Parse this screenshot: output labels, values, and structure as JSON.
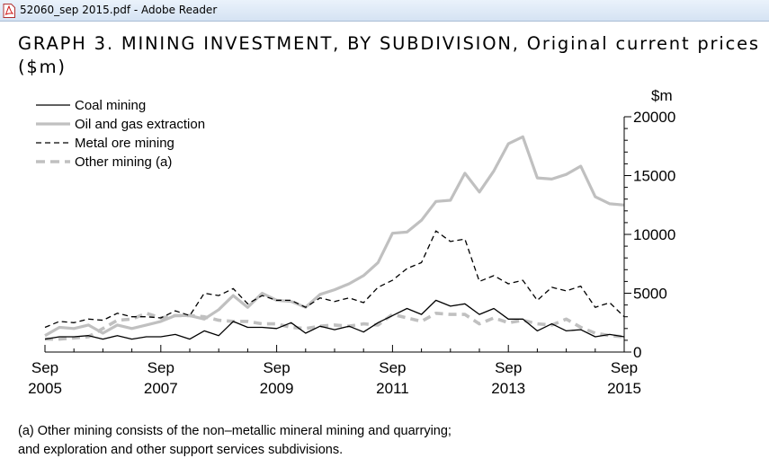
{
  "window": {
    "title": "52060_sep 2015.pdf - Adobe Reader",
    "icon": "pdf-file-icon"
  },
  "figure": {
    "title": "GRAPH 3. MINING INVESTMENT, BY SUBDIVISION, Original current prices ($m)",
    "footnote_line1": "(a) Other mining consists of the non–metallic mineral mining and quarrying;",
    "footnote_line2": "and exploration and other support services subdivisions."
  },
  "chart_data": {
    "type": "line",
    "title": "GRAPH 3. MINING INVESTMENT, BY SUBDIVISION, Original current prices ($m)",
    "xlabel": "",
    "ylabel": "$m",
    "x_start": "Sep 2005",
    "x_end": "Sep 2015",
    "x_frequency": "quarterly",
    "x_tick_labels": [
      {
        "month": "Sep",
        "year": "2005"
      },
      {
        "month": "Sep",
        "year": "2007"
      },
      {
        "month": "Sep",
        "year": "2009"
      },
      {
        "month": "Sep",
        "year": "2011"
      },
      {
        "month": "Sep",
        "year": "2013"
      },
      {
        "month": "Sep",
        "year": "2015"
      }
    ],
    "ylim": [
      0,
      20000
    ],
    "y_ticks": [
      0,
      5000,
      10000,
      15000,
      20000
    ],
    "y_axis_side": "right",
    "grid": false,
    "legend_position": "top-left",
    "series": [
      {
        "name": "Coal mining",
        "color": "#000000",
        "style": "solid-thin",
        "values": [
          1100,
          1300,
          1300,
          1400,
          1100,
          1400,
          1100,
          1300,
          1300,
          1500,
          1100,
          1800,
          1400,
          2600,
          2100,
          2100,
          2000,
          2500,
          1600,
          2200,
          1900,
          2200,
          1700,
          2500,
          3100,
          3700,
          3200,
          4400,
          3900,
          4100,
          3200,
          3700,
          2800,
          2800,
          1800,
          2400,
          1800,
          1900,
          1300,
          1500,
          1300
        ]
      },
      {
        "name": "Oil and gas extraction",
        "color": "#c0c0c0",
        "style": "solid-thick",
        "values": [
          1400,
          2100,
          2000,
          2300,
          1600,
          2300,
          2000,
          2300,
          2600,
          3100,
          3100,
          2800,
          3600,
          4800,
          3800,
          5000,
          4400,
          4300,
          3800,
          4900,
          5300,
          5800,
          6500,
          7600,
          10100,
          10200,
          11200,
          12800,
          12900,
          15200,
          13600,
          15400,
          17700,
          18300,
          14800,
          14700,
          15100,
          15800,
          13200,
          12600,
          12500
        ]
      },
      {
        "name": "Metal ore mining",
        "color": "#000000",
        "style": "dashed-thin",
        "values": [
          2100,
          2600,
          2500,
          2800,
          2700,
          3300,
          3000,
          3000,
          2900,
          3500,
          3100,
          5000,
          4800,
          5400,
          4100,
          4800,
          4400,
          4400,
          3800,
          4600,
          4300,
          4600,
          4200,
          5500,
          6100,
          7100,
          7600,
          10300,
          9400,
          9600,
          6000,
          6500,
          5800,
          6100,
          4400,
          5500,
          5200,
          5600,
          3800,
          4200,
          3000
        ]
      },
      {
        "name": "Other mining (a)",
        "color": "#c0c0c0",
        "style": "dashed-thick",
        "values": [
          1100,
          1100,
          1200,
          1300,
          2000,
          2700,
          2800,
          3300,
          2900,
          3100,
          3100,
          3000,
          2700,
          2600,
          2600,
          2400,
          2400,
          2100,
          2000,
          2200,
          2300,
          2200,
          2400,
          2300,
          3200,
          2900,
          2600,
          3300,
          3200,
          3200,
          2400,
          2900,
          2500,
          2700,
          2400,
          2300,
          2800,
          2100,
          1600,
          1400,
          1300
        ]
      }
    ]
  }
}
